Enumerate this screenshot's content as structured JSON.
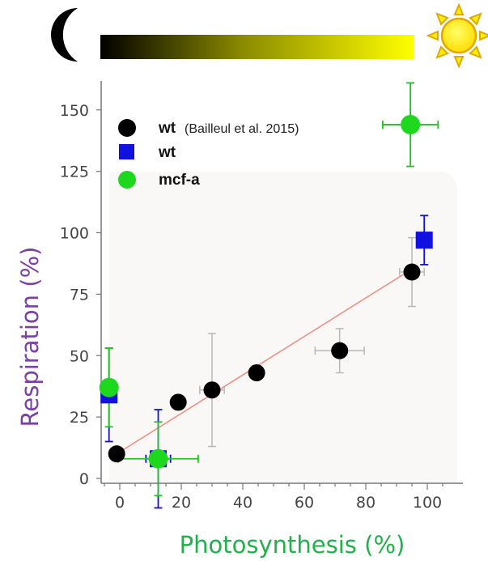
{
  "chart_data": {
    "type": "scatter",
    "xlabel": "Photosynthesis (%)",
    "ylabel": "Respiration (%)",
    "xlim": [
      -5,
      105
    ],
    "ylim": [
      0,
      162
    ],
    "x_ticks": [
      0,
      20,
      40,
      60,
      80,
      100
    ],
    "y_ticks": [
      0,
      25,
      50,
      75,
      100,
      125,
      150
    ],
    "grid": false,
    "legend_position": "top-left",
    "colors": {
      "xlabel": "#22b04b",
      "ylabel": "#7b3fa8",
      "trendline": "#f08a80",
      "gradient_dark": "#000000",
      "gradient_light": "#ffff00"
    },
    "icons": {
      "left": "moon-icon",
      "right": "sun-icon"
    },
    "series": [
      {
        "name": "wt",
        "note": "(Bailleul et al. 2015)",
        "marker": "circle",
        "color": "#000000",
        "points": [
          {
            "x": -1,
            "y": 10
          },
          {
            "x": 19,
            "y": 31,
            "yerr": 3
          },
          {
            "x": 30,
            "y": 36,
            "xerr": 4,
            "yerr": 23
          },
          {
            "x": 44.5,
            "y": 43
          },
          {
            "x": 71.5,
            "y": 52,
            "xerr": 8,
            "yerr": 9
          },
          {
            "x": 95,
            "y": 84,
            "xerr": 4,
            "yerr": 14
          }
        ]
      },
      {
        "name": "wt",
        "note": "",
        "marker": "square",
        "color": "#1010e0",
        "points": [
          {
            "x": -3.5,
            "y": 34,
            "yerr": 19
          },
          {
            "x": 12.5,
            "y": 8,
            "xerr": 4,
            "yerr": 20
          },
          {
            "x": 99,
            "y": 97,
            "xerr": 1,
            "yerr": 10
          }
        ]
      },
      {
        "name": "mcf-a",
        "note": "",
        "marker": "circle",
        "color": "#1ed81e",
        "points": [
          {
            "x": -3.5,
            "y": 37,
            "yerr": 16
          },
          {
            "x": 12.5,
            "y": 8,
            "xerr": 13,
            "yerr": 15
          },
          {
            "x": 94.5,
            "y": 144,
            "xerr": 9,
            "yerr": 17
          }
        ]
      }
    ],
    "trendline": {
      "from": {
        "x": -1,
        "y": 10
      },
      "to": {
        "x": 96,
        "y": 86
      }
    }
  }
}
